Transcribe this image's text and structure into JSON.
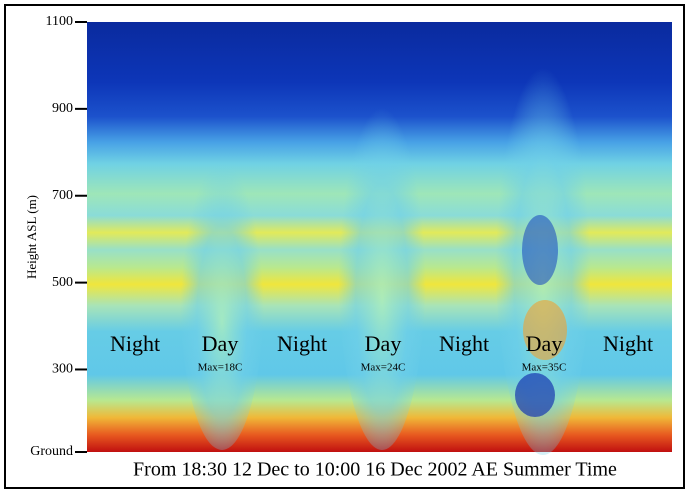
{
  "chart_data": {
    "type": "heatmap",
    "y_label": "Height ASL (m)",
    "x_label": "From 18:30 12 Dec to 10:00 16 Dec 2002 AE Summer Time",
    "ylim": [
      110,
      1100
    ],
    "yticks": [
      {
        "value": 110,
        "label": "Ground"
      },
      300,
      500,
      700,
      900,
      1100
    ],
    "annotations": [
      {
        "text": "Night"
      },
      {
        "text": "Day",
        "note": "Max=18C"
      },
      {
        "text": "Night"
      },
      {
        "text": "Day",
        "note": "Max=24C"
      },
      {
        "text": "Night"
      },
      {
        "text": "Day",
        "note": "Max=35C"
      },
      {
        "text": "Night"
      }
    ]
  }
}
